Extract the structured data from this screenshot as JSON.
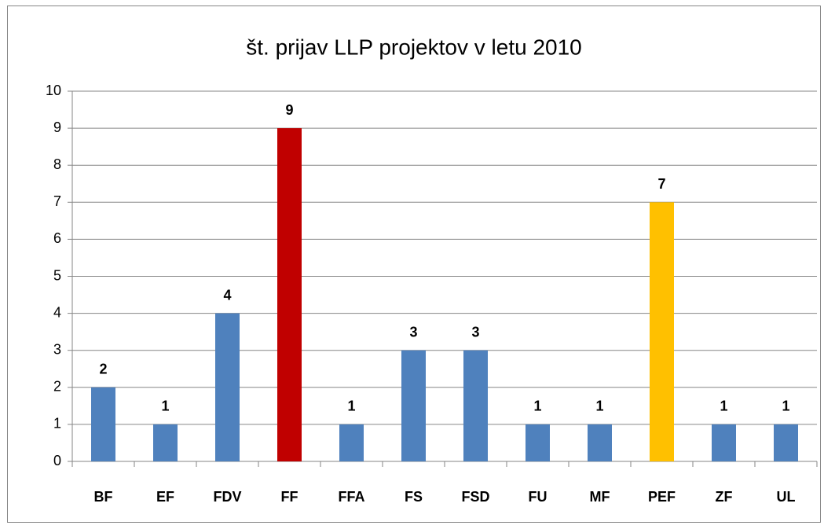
{
  "chart_data": {
    "type": "bar",
    "title": "št. prijav LLP projektov v letu 2010",
    "categories": [
      "BF",
      "EF",
      "FDV",
      "FF",
      "FFA",
      "FS",
      "FSD",
      "FU",
      "MF",
      "PEF",
      "ZF",
      "UL"
    ],
    "values": [
      2,
      1,
      4,
      9,
      1,
      3,
      3,
      1,
      1,
      7,
      1,
      1
    ],
    "colors": [
      "#4f81bd",
      "#4f81bd",
      "#4f81bd",
      "#c00000",
      "#4f81bd",
      "#4f81bd",
      "#4f81bd",
      "#4f81bd",
      "#4f81bd",
      "#ffc000",
      "#4f81bd",
      "#4f81bd"
    ],
    "ylim": [
      0,
      10
    ],
    "yticks": [
      0,
      1,
      2,
      3,
      4,
      5,
      6,
      7,
      8,
      9,
      10
    ],
    "grid": true,
    "data_labels": true
  }
}
